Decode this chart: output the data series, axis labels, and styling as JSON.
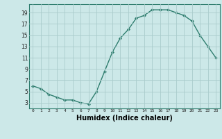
{
  "x": [
    0,
    1,
    2,
    3,
    4,
    5,
    6,
    7,
    8,
    9,
    10,
    11,
    12,
    13,
    14,
    15,
    16,
    17,
    18,
    19,
    20,
    21,
    22,
    23
  ],
  "y": [
    6,
    5.5,
    4.5,
    4,
    3.5,
    3.5,
    3,
    2.8,
    5,
    8.5,
    12,
    14.5,
    16,
    18,
    18.5,
    19.5,
    19.5,
    19.5,
    19,
    18.5,
    17.5,
    15,
    13,
    11
  ],
  "line_color": "#2e7d6e",
  "marker": "D",
  "marker_size": 2,
  "bg_color": "#cce8e8",
  "grid_color": "#aacccc",
  "xlabel": "Humidex (Indice chaleur)",
  "xlabel_fontsize": 7,
  "ylabel_ticks": [
    3,
    5,
    7,
    9,
    11,
    13,
    15,
    17,
    19
  ],
  "xlim": [
    -0.5,
    23.5
  ],
  "ylim": [
    2.0,
    20.5
  ],
  "xtick_labels": [
    "0",
    "1",
    "2",
    "3",
    "4",
    "5",
    "6",
    "7",
    "8",
    "9",
    "10",
    "11",
    "12",
    "13",
    "14",
    "15",
    "16",
    "17",
    "18",
    "19",
    "20",
    "21",
    "22",
    "23"
  ]
}
